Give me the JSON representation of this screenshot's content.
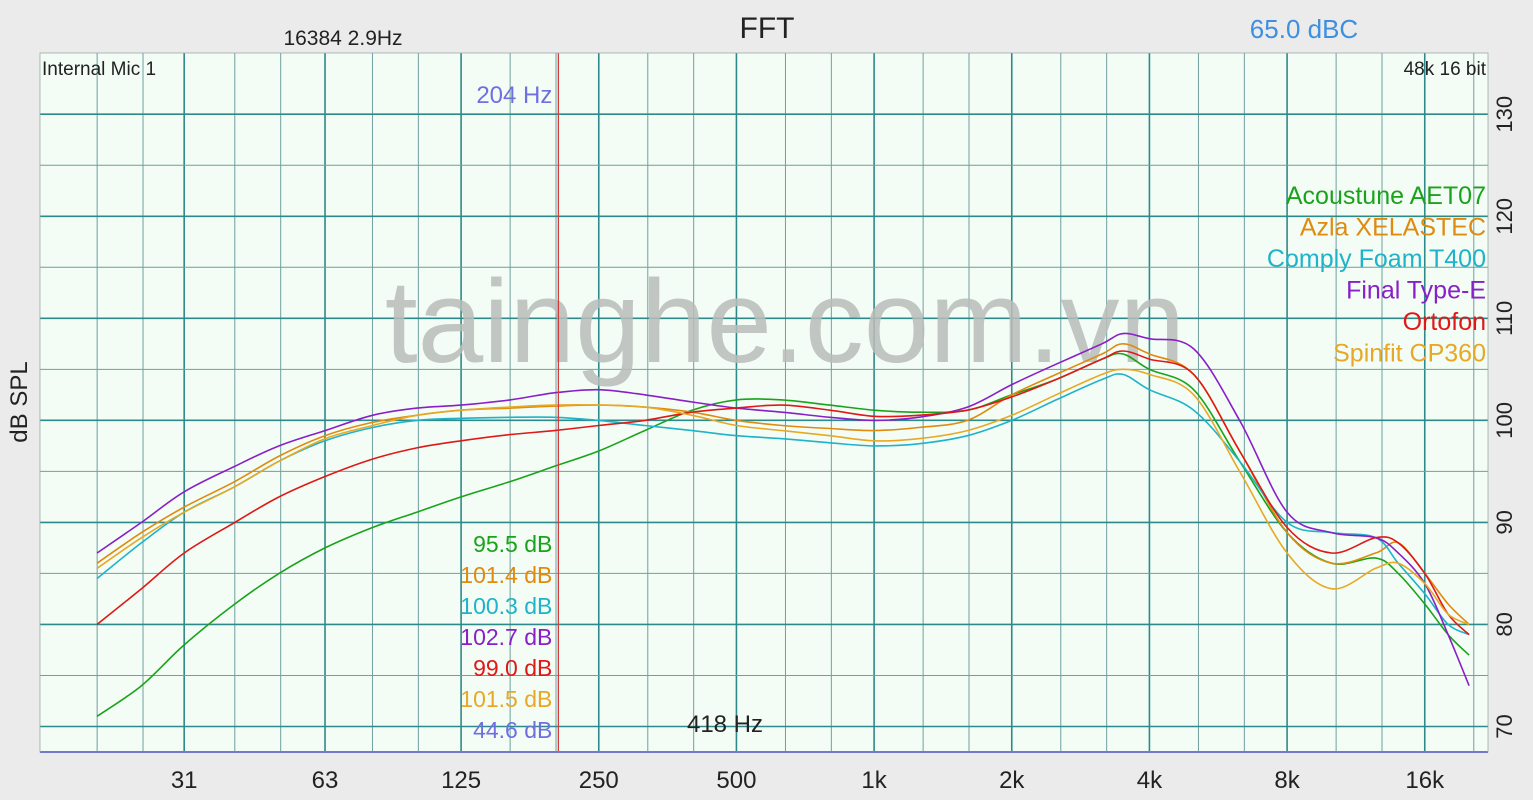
{
  "header": {
    "title": "FFT",
    "fft_info": "16384  2.9Hz",
    "level": "65.0 dBC",
    "input": "Internal Mic 1",
    "format": "48k 16 bit"
  },
  "watermark": "tainghe.com.vn",
  "cursor": {
    "freq_label": "204 Hz",
    "freq": 204,
    "bottom_label": "418 Hz"
  },
  "readouts": [
    {
      "text": "95.5 dB",
      "color": "#1aa31a"
    },
    {
      "text": "101.4 dB",
      "color": "#e08a0e"
    },
    {
      "text": "100.3 dB",
      "color": "#1fb3c9"
    },
    {
      "text": "102.7 dB",
      "color": "#8a1ec8"
    },
    {
      "text": "99.0 dB",
      "color": "#e01818"
    },
    {
      "text": "101.5 dB",
      "color": "#e8a825"
    },
    {
      "text": "44.6 dB",
      "color": "#6f6fe0"
    }
  ],
  "chart_data": {
    "type": "line",
    "xscale": "log",
    "xlim": [
      15,
      22000
    ],
    "ylim": [
      67.5,
      136
    ],
    "ylabel": "dB SPL",
    "grid": true,
    "legend_position": "top-right",
    "x_ticks": [
      {
        "value": 31,
        "label": "31"
      },
      {
        "value": 63,
        "label": "63"
      },
      {
        "value": 125,
        "label": "125"
      },
      {
        "value": 250,
        "label": "250"
      },
      {
        "value": 500,
        "label": "500"
      },
      {
        "value": 1000,
        "label": "1k"
      },
      {
        "value": 2000,
        "label": "2k"
      },
      {
        "value": 4000,
        "label": "4k"
      },
      {
        "value": 8000,
        "label": "8k"
      },
      {
        "value": 16000,
        "label": "16k"
      }
    ],
    "y_ticks": [
      70,
      80,
      90,
      100,
      110,
      120,
      130
    ],
    "x": [
      20,
      25,
      31,
      40,
      50,
      63,
      80,
      100,
      125,
      160,
      200,
      250,
      315,
      400,
      500,
      630,
      800,
      1000,
      1250,
      1600,
      2000,
      2500,
      3150,
      3500,
      4000,
      5000,
      6300,
      8000,
      10000,
      12500,
      14000,
      16000,
      18000,
      20000
    ],
    "series": [
      {
        "name": "Acoustune AET07",
        "color": "#1aa31a",
        "values": [
          71,
          74,
          78,
          82,
          85,
          87.5,
          89.5,
          91,
          92.5,
          94,
          95.5,
          97,
          99,
          101,
          102,
          102,
          101.5,
          101,
          100.8,
          101,
          102.5,
          104,
          106,
          106.5,
          105,
          103,
          96,
          89,
          86,
          86.5,
          85,
          82,
          79,
          77
        ]
      },
      {
        "name": "Azla XELASTEC",
        "color": "#e08a0e",
        "values": [
          86,
          89,
          91.5,
          94,
          96.5,
          98.5,
          99.8,
          100.5,
          101,
          101.2,
          101.4,
          101.5,
          101.3,
          100.8,
          100,
          99.5,
          99.2,
          99,
          99.3,
          100,
          102.5,
          104.5,
          106.5,
          107.5,
          106.5,
          104.5,
          97,
          89,
          86,
          87,
          88,
          85,
          82,
          80
        ]
      },
      {
        "name": "Comply Foam T400",
        "color": "#1fb3c9",
        "values": [
          84.5,
          88,
          91,
          93.5,
          96,
          98,
          99.3,
          100,
          100.2,
          100.3,
          100.3,
          100,
          99.5,
          99,
          98.5,
          98.2,
          97.8,
          97.5,
          97.7,
          98.5,
          100,
          102,
          104,
          104.5,
          103,
          101,
          96,
          90,
          89,
          88.5,
          86,
          83,
          80,
          79
        ]
      },
      {
        "name": "Final Type-E",
        "color": "#8a1ec8",
        "values": [
          87,
          90,
          93,
          95.5,
          97.5,
          99,
          100.5,
          101.2,
          101.5,
          102,
          102.7,
          103,
          102.5,
          101.8,
          101.2,
          100.8,
          100.3,
          100,
          100.3,
          101.3,
          103.5,
          105.5,
          107.5,
          108.5,
          108,
          107,
          100,
          91,
          89,
          88.5,
          87,
          84,
          79,
          74
        ]
      },
      {
        "name": "Ortofon",
        "color": "#e01818",
        "values": [
          80,
          83.5,
          87,
          90,
          92.5,
          94.5,
          96.2,
          97.3,
          98,
          98.6,
          99,
          99.5,
          100,
          100.8,
          101.2,
          101.5,
          101,
          100.4,
          100.5,
          101,
          102.3,
          104,
          106,
          106.8,
          106,
          104.5,
          97,
          89.5,
          87,
          88.5,
          88,
          85,
          81,
          79
        ]
      },
      {
        "name": "Spinfit CP360",
        "color": "#e8a825",
        "values": [
          85.5,
          88.5,
          91,
          93.5,
          96,
          98.2,
          99.5,
          100.5,
          101,
          101.3,
          101.5,
          101.5,
          101.3,
          100.5,
          99.5,
          99,
          98.5,
          98,
          98.2,
          99,
          100.5,
          102.5,
          104.5,
          105,
          104.5,
          102.5,
          95,
          87,
          83.5,
          85.5,
          86,
          84,
          81,
          80
        ]
      }
    ]
  }
}
